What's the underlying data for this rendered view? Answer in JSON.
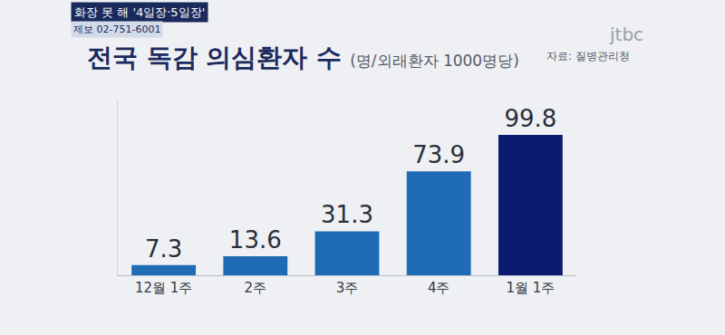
{
  "chart_data": {
    "type": "bar",
    "title": "전국 독감 의심환자 수",
    "subtitle": "(명/외래환자 1000명당)",
    "annotations": [
      "화장 못 해 '4일장·5일장'",
      "제보 02-751-6001",
      "jtbc",
      "자료: 질병관리청"
    ],
    "categories": [
      "12월 1주",
      "2주",
      "3주",
      "4주",
      "1월 1주"
    ],
    "values": [
      7.3,
      13.6,
      31.3,
      73.9,
      99.8
    ],
    "colors": [
      "#1f6cb4",
      "#1f6cb4",
      "#1f6cb4",
      "#1f6cb4",
      "#0c1a6e"
    ],
    "ylim": [
      0,
      125
    ],
    "yticks": [],
    "grid": false,
    "data_labels": true,
    "tick_labels": "x"
  }
}
